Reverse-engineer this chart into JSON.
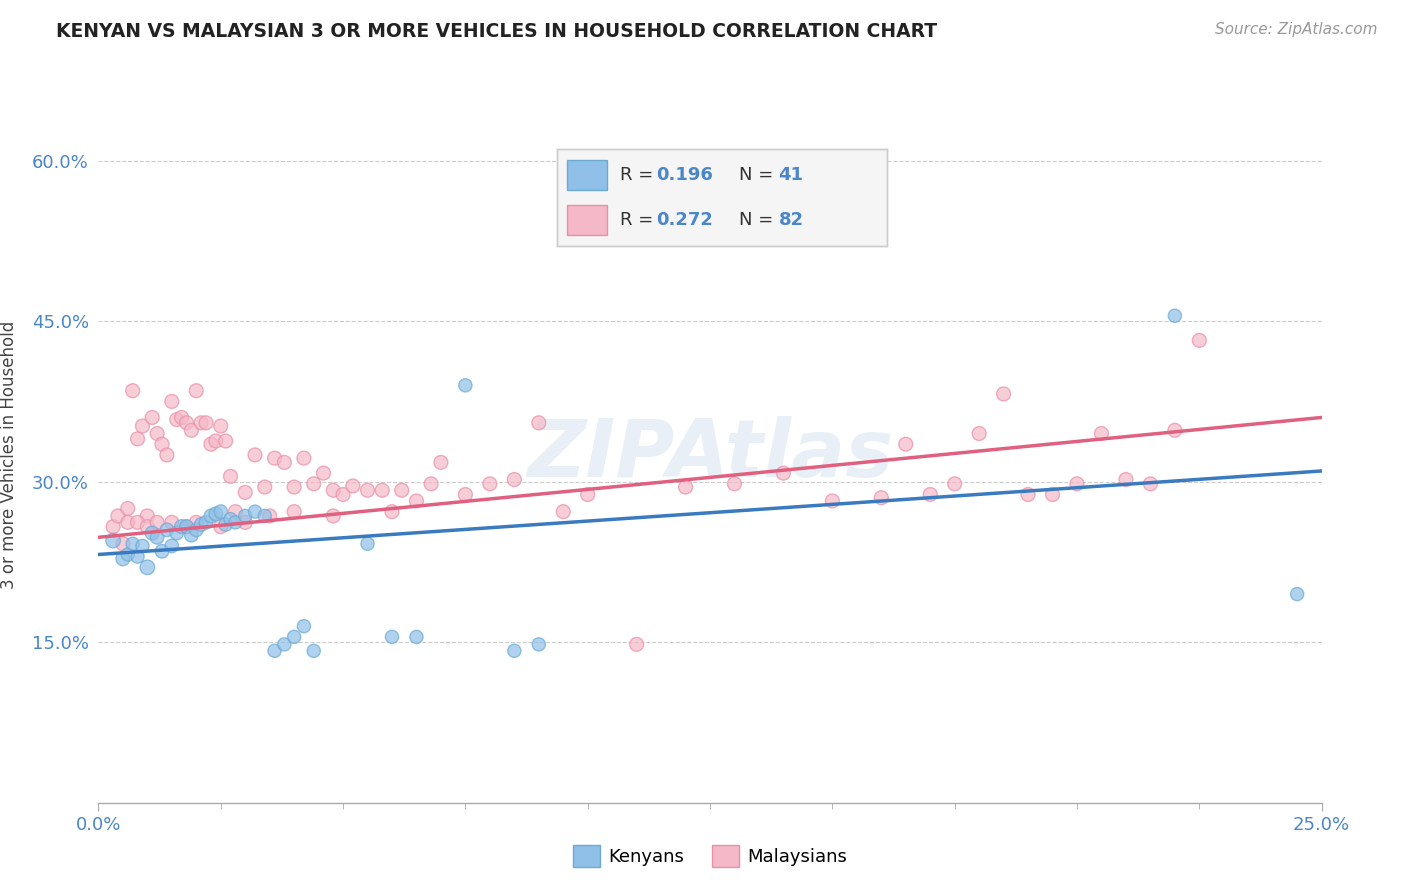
{
  "title": "KENYAN VS MALAYSIAN 3 OR MORE VEHICLES IN HOUSEHOLD CORRELATION CHART",
  "source": "Source: ZipAtlas.com",
  "ylabel_label": "3 or more Vehicles in Household",
  "x_min": 0.0,
  "x_max": 0.25,
  "y_min": 0.0,
  "y_max": 0.65,
  "x_tick_labels": [
    "0.0%",
    "25.0%"
  ],
  "y_ticks": [
    0.15,
    0.3,
    0.45,
    0.6
  ],
  "y_tick_labels": [
    "15.0%",
    "30.0%",
    "45.0%",
    "60.0%"
  ],
  "kenyan_R": "0.196",
  "kenyan_N": "41",
  "malaysian_R": "0.272",
  "malaysian_N": "82",
  "kenyan_color": "#90c0e8",
  "kenyan_edge_color": "#6aaad4",
  "kenyan_line_color": "#3a7bbf",
  "malaysian_color": "#f4b8c8",
  "malaysian_edge_color": "#e890a8",
  "malaysian_line_color": "#e06080",
  "watermark": "ZIPAtlas",
  "stat_color": "#4a86c8",
  "kenyan_scatter_x": [
    0.003,
    0.005,
    0.006,
    0.007,
    0.008,
    0.009,
    0.01,
    0.011,
    0.012,
    0.013,
    0.014,
    0.015,
    0.016,
    0.017,
    0.018,
    0.019,
    0.02,
    0.021,
    0.022,
    0.023,
    0.024,
    0.025,
    0.026,
    0.027,
    0.028,
    0.03,
    0.032,
    0.034,
    0.036,
    0.038,
    0.04,
    0.042,
    0.044,
    0.055,
    0.06,
    0.065,
    0.075,
    0.085,
    0.09,
    0.22,
    0.245
  ],
  "kenyan_scatter_y": [
    0.245,
    0.228,
    0.232,
    0.242,
    0.23,
    0.24,
    0.22,
    0.252,
    0.248,
    0.235,
    0.255,
    0.24,
    0.252,
    0.258,
    0.258,
    0.25,
    0.255,
    0.26,
    0.262,
    0.268,
    0.27,
    0.272,
    0.26,
    0.265,
    0.262,
    0.268,
    0.272,
    0.268,
    0.142,
    0.148,
    0.155,
    0.165,
    0.142,
    0.242,
    0.155,
    0.155,
    0.39,
    0.142,
    0.148,
    0.455,
    0.195
  ],
  "kenyan_scatter_size": [
    110,
    100,
    90,
    90,
    90,
    90,
    110,
    100,
    95,
    95,
    95,
    95,
    95,
    100,
    95,
    95,
    95,
    95,
    95,
    95,
    95,
    95,
    95,
    90,
    90,
    90,
    90,
    90,
    90,
    90,
    90,
    90,
    90,
    90,
    90,
    90,
    90,
    90,
    90,
    90,
    90
  ],
  "malaysian_scatter_x": [
    0.003,
    0.004,
    0.005,
    0.006,
    0.007,
    0.008,
    0.009,
    0.01,
    0.011,
    0.012,
    0.013,
    0.014,
    0.015,
    0.016,
    0.017,
    0.018,
    0.019,
    0.02,
    0.021,
    0.022,
    0.023,
    0.024,
    0.025,
    0.026,
    0.027,
    0.028,
    0.03,
    0.032,
    0.034,
    0.036,
    0.038,
    0.04,
    0.042,
    0.044,
    0.046,
    0.048,
    0.05,
    0.052,
    0.055,
    0.058,
    0.06,
    0.062,
    0.065,
    0.068,
    0.07,
    0.075,
    0.08,
    0.085,
    0.09,
    0.095,
    0.1,
    0.11,
    0.12,
    0.13,
    0.14,
    0.15,
    0.16,
    0.165,
    0.17,
    0.175,
    0.18,
    0.185,
    0.19,
    0.195,
    0.2,
    0.205,
    0.21,
    0.215,
    0.22,
    0.225,
    0.006,
    0.008,
    0.01,
    0.012,
    0.015,
    0.018,
    0.02,
    0.025,
    0.03,
    0.035,
    0.04,
    0.048
  ],
  "malaysian_scatter_y": [
    0.258,
    0.268,
    0.242,
    0.275,
    0.385,
    0.34,
    0.352,
    0.268,
    0.36,
    0.345,
    0.335,
    0.325,
    0.375,
    0.358,
    0.36,
    0.355,
    0.348,
    0.385,
    0.355,
    0.355,
    0.335,
    0.338,
    0.352,
    0.338,
    0.305,
    0.272,
    0.29,
    0.325,
    0.295,
    0.322,
    0.318,
    0.295,
    0.322,
    0.298,
    0.308,
    0.292,
    0.288,
    0.296,
    0.292,
    0.292,
    0.272,
    0.292,
    0.282,
    0.298,
    0.318,
    0.288,
    0.298,
    0.302,
    0.355,
    0.272,
    0.288,
    0.148,
    0.295,
    0.298,
    0.308,
    0.282,
    0.285,
    0.335,
    0.288,
    0.298,
    0.345,
    0.382,
    0.288,
    0.288,
    0.298,
    0.345,
    0.302,
    0.298,
    0.348,
    0.432,
    0.262,
    0.262,
    0.258,
    0.262,
    0.262,
    0.258,
    0.262,
    0.258,
    0.262,
    0.268,
    0.272,
    0.268
  ],
  "malaysian_scatter_size": [
    100,
    100,
    100,
    100,
    100,
    100,
    100,
    100,
    100,
    100,
    100,
    100,
    100,
    100,
    100,
    100,
    100,
    100,
    100,
    100,
    100,
    100,
    100,
    100,
    100,
    100,
    100,
    100,
    100,
    100,
    100,
    100,
    100,
    100,
    100,
    100,
    100,
    100,
    100,
    100,
    100,
    100,
    100,
    100,
    100,
    100,
    100,
    100,
    100,
    100,
    100,
    100,
    100,
    100,
    100,
    100,
    100,
    100,
    100,
    100,
    100,
    100,
    100,
    100,
    100,
    100,
    100,
    100,
    100,
    100,
    100,
    100,
    100,
    100,
    100,
    100,
    100,
    100,
    100,
    100,
    100,
    100
  ],
  "kenyan_trend_x0": 0.0,
  "kenyan_trend_y0": 0.232,
  "kenyan_trend_x1": 0.25,
  "kenyan_trend_y1": 0.31,
  "malaysian_trend_x0": 0.0,
  "malaysian_trend_y0": 0.248,
  "malaysian_trend_x1": 0.25,
  "malaysian_trend_y1": 0.36
}
